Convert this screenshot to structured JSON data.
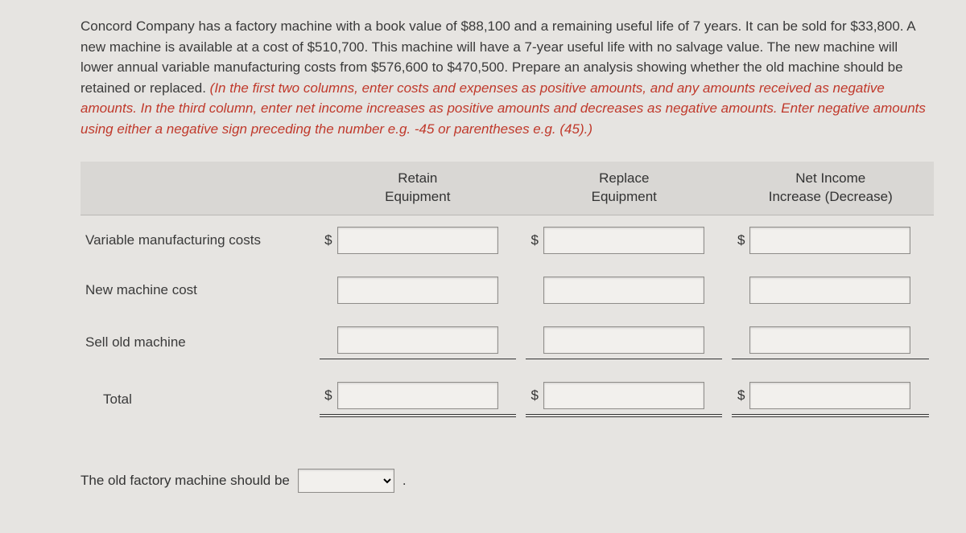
{
  "prompt": {
    "main": "Concord Company has a factory machine with a book value of $88,100 and a remaining useful life of 7 years. It can be sold for $33,800. A new machine is available at a cost of $510,700. This machine will have a 7-year useful life with no salvage value. The new machine will lower annual variable manufacturing costs from $576,600 to $470,500. Prepare an analysis showing whether the old machine should be retained or replaced. ",
    "instruction": "(In the first two columns, enter costs and expenses as positive amounts, and any amounts received as negative amounts.  In the third column, enter net income increases as positive amounts and decreases as negative amounts. Enter negative amounts using either a negative sign preceding the number e.g. -45 or parentheses e.g. (45).)"
  },
  "columns": {
    "retain": {
      "line1": "Retain",
      "line2": "Equipment"
    },
    "replace": {
      "line1": "Replace",
      "line2": "Equipment"
    },
    "net": {
      "line1": "Net Income",
      "line2": "Increase (Decrease)"
    }
  },
  "rows": {
    "var_cost": {
      "label": "Variable manufacturing costs",
      "dollar": "$",
      "retain": "",
      "replace": "",
      "net": ""
    },
    "new_machine": {
      "label": "New machine cost",
      "dollar": "",
      "retain": "",
      "replace": "",
      "net": ""
    },
    "sell_old": {
      "label": "Sell old machine",
      "dollar": "",
      "retain": "",
      "replace": "",
      "net": ""
    },
    "total": {
      "label": "Total",
      "dollar": "$",
      "retain": "",
      "replace": "",
      "net": ""
    }
  },
  "decision": {
    "label": "The old factory machine should be",
    "value": "",
    "period": "."
  }
}
